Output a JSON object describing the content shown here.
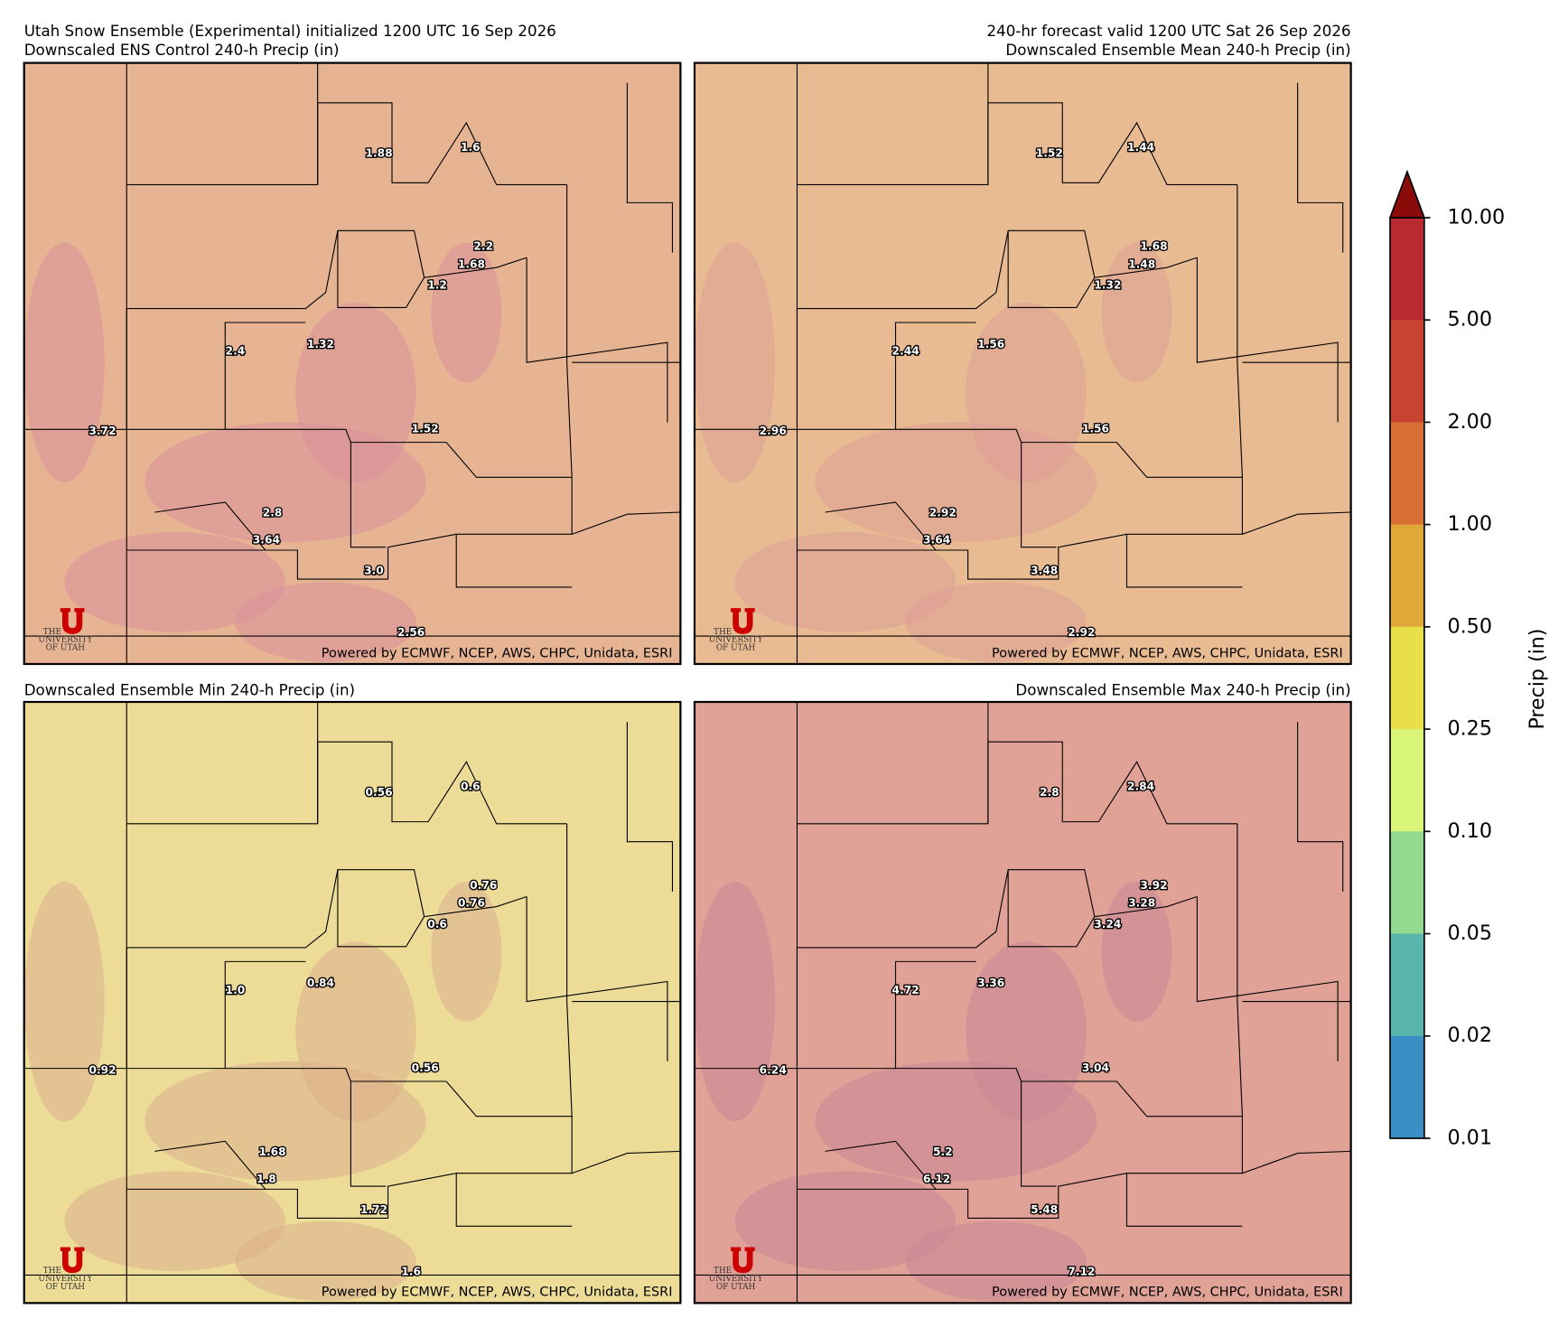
{
  "header": {
    "title_left": "Utah Snow Ensemble (Experimental) initialized 1200 UTC 16 Sep 2026",
    "title_right": "240-hr forecast valid 1200 UTC Sat 26 Sep 2026"
  },
  "panels": [
    {
      "title": "Downscaled ENS Control 240-h Precip (in)",
      "fill": "#e7b493",
      "blob": "#d9909a",
      "labels": [
        "1.88",
        "1.6",
        "2.2",
        "1.68",
        "1.2",
        "2.4",
        "1.32",
        "3.72",
        "1.52",
        "2.8",
        "3.64",
        "3.0",
        "2.56"
      ]
    },
    {
      "title": "Downscaled Ensemble Mean 240-h Precip (in)",
      "fill": "#e8bb92",
      "blob": "#dd9f95",
      "labels": [
        "1.52",
        "1.44",
        "1.68",
        "1.48",
        "1.32",
        "2.44",
        "1.56",
        "2.96",
        "1.56",
        "2.92",
        "3.64",
        "3.48",
        "2.92"
      ]
    },
    {
      "title": "Downscaled Ensemble Min 240-h Precip (in)",
      "fill": "#ecdc98",
      "blob": "#dcae8c",
      "labels": [
        "0.56",
        "0.6",
        "0.76",
        "0.76",
        "0.6",
        "1.0",
        "0.84",
        "0.92",
        "0.56",
        "1.68",
        "1.8",
        "1.72",
        "1.6"
      ]
    },
    {
      "title": "Downscaled Ensemble Max 240-h Precip (in)",
      "fill": "#e0a196",
      "blob": "#c98798",
      "labels": [
        "2.8",
        "2.84",
        "3.92",
        "3.28",
        "3.24",
        "4.72",
        "3.36",
        "6.24",
        "3.04",
        "5.2",
        "6.12",
        "5.48",
        "7.12"
      ]
    }
  ],
  "credit": "Powered by ECMWF, NCEP, AWS, CHPC, Unidata, ESRI",
  "logo": {
    "the": "THE",
    "name": "UNIVERSITY",
    "of": "OF UTAH"
  },
  "colorbar": {
    "label": "Precip (in)",
    "ticks": [
      "10.00",
      "5.00",
      "2.00",
      "1.00",
      "0.50",
      "0.25",
      "0.10",
      "0.05",
      "0.02",
      "0.01"
    ],
    "colors": [
      "#b82a30",
      "#c94430",
      "#d87035",
      "#e0a838",
      "#e8df4a",
      "#d9f57a",
      "#93d98f",
      "#5ab5ad",
      "#3a8fc4"
    ],
    "extend_color": "#8b0a0a"
  }
}
